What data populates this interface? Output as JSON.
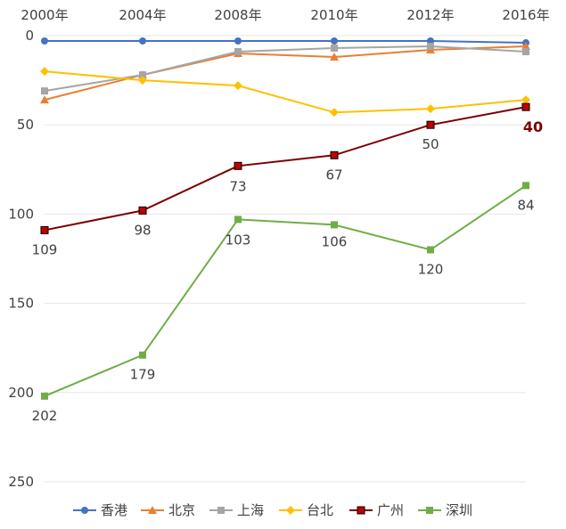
{
  "chart_data": {
    "type": "line",
    "categories": [
      "2000年",
      "2004年",
      "2008年",
      "2010年",
      "2012年",
      "2016年"
    ],
    "y_axis": {
      "inverted": true,
      "ylim": [
        0,
        250
      ],
      "ticks": [
        0,
        50,
        100,
        150,
        200,
        250
      ],
      "grid": true
    },
    "legend_position": "bottom",
    "series": [
      {
        "name": "香港",
        "color": "#4472c4",
        "marker": "circle",
        "values": [
          3,
          3,
          3,
          3,
          3,
          4
        ]
      },
      {
        "name": "北京",
        "color": "#ed7d31",
        "marker": "triangle",
        "values": [
          36,
          22,
          10,
          12,
          8,
          6
        ]
      },
      {
        "name": "上海",
        "color": "#a5a5a5",
        "marker": "square",
        "values": [
          31,
          22,
          9,
          7,
          6,
          9
        ]
      },
      {
        "name": "台北",
        "color": "#ffc000",
        "marker": "diamond",
        "values": [
          20,
          25,
          28,
          43,
          41,
          36
        ]
      },
      {
        "name": "广州",
        "color": "#7b0000",
        "marker": "square-outline",
        "values": [
          109,
          98,
          73,
          67,
          50,
          40
        ],
        "labels": [
          "109",
          "98",
          "73",
          "67",
          "50",
          "40"
        ]
      },
      {
        "name": "深圳",
        "color": "#70ad47",
        "marker": "square",
        "values": [
          202,
          179,
          103,
          106,
          120,
          84
        ],
        "labels": [
          "202",
          "179",
          "103",
          "106",
          "120",
          "84"
        ]
      }
    ]
  }
}
